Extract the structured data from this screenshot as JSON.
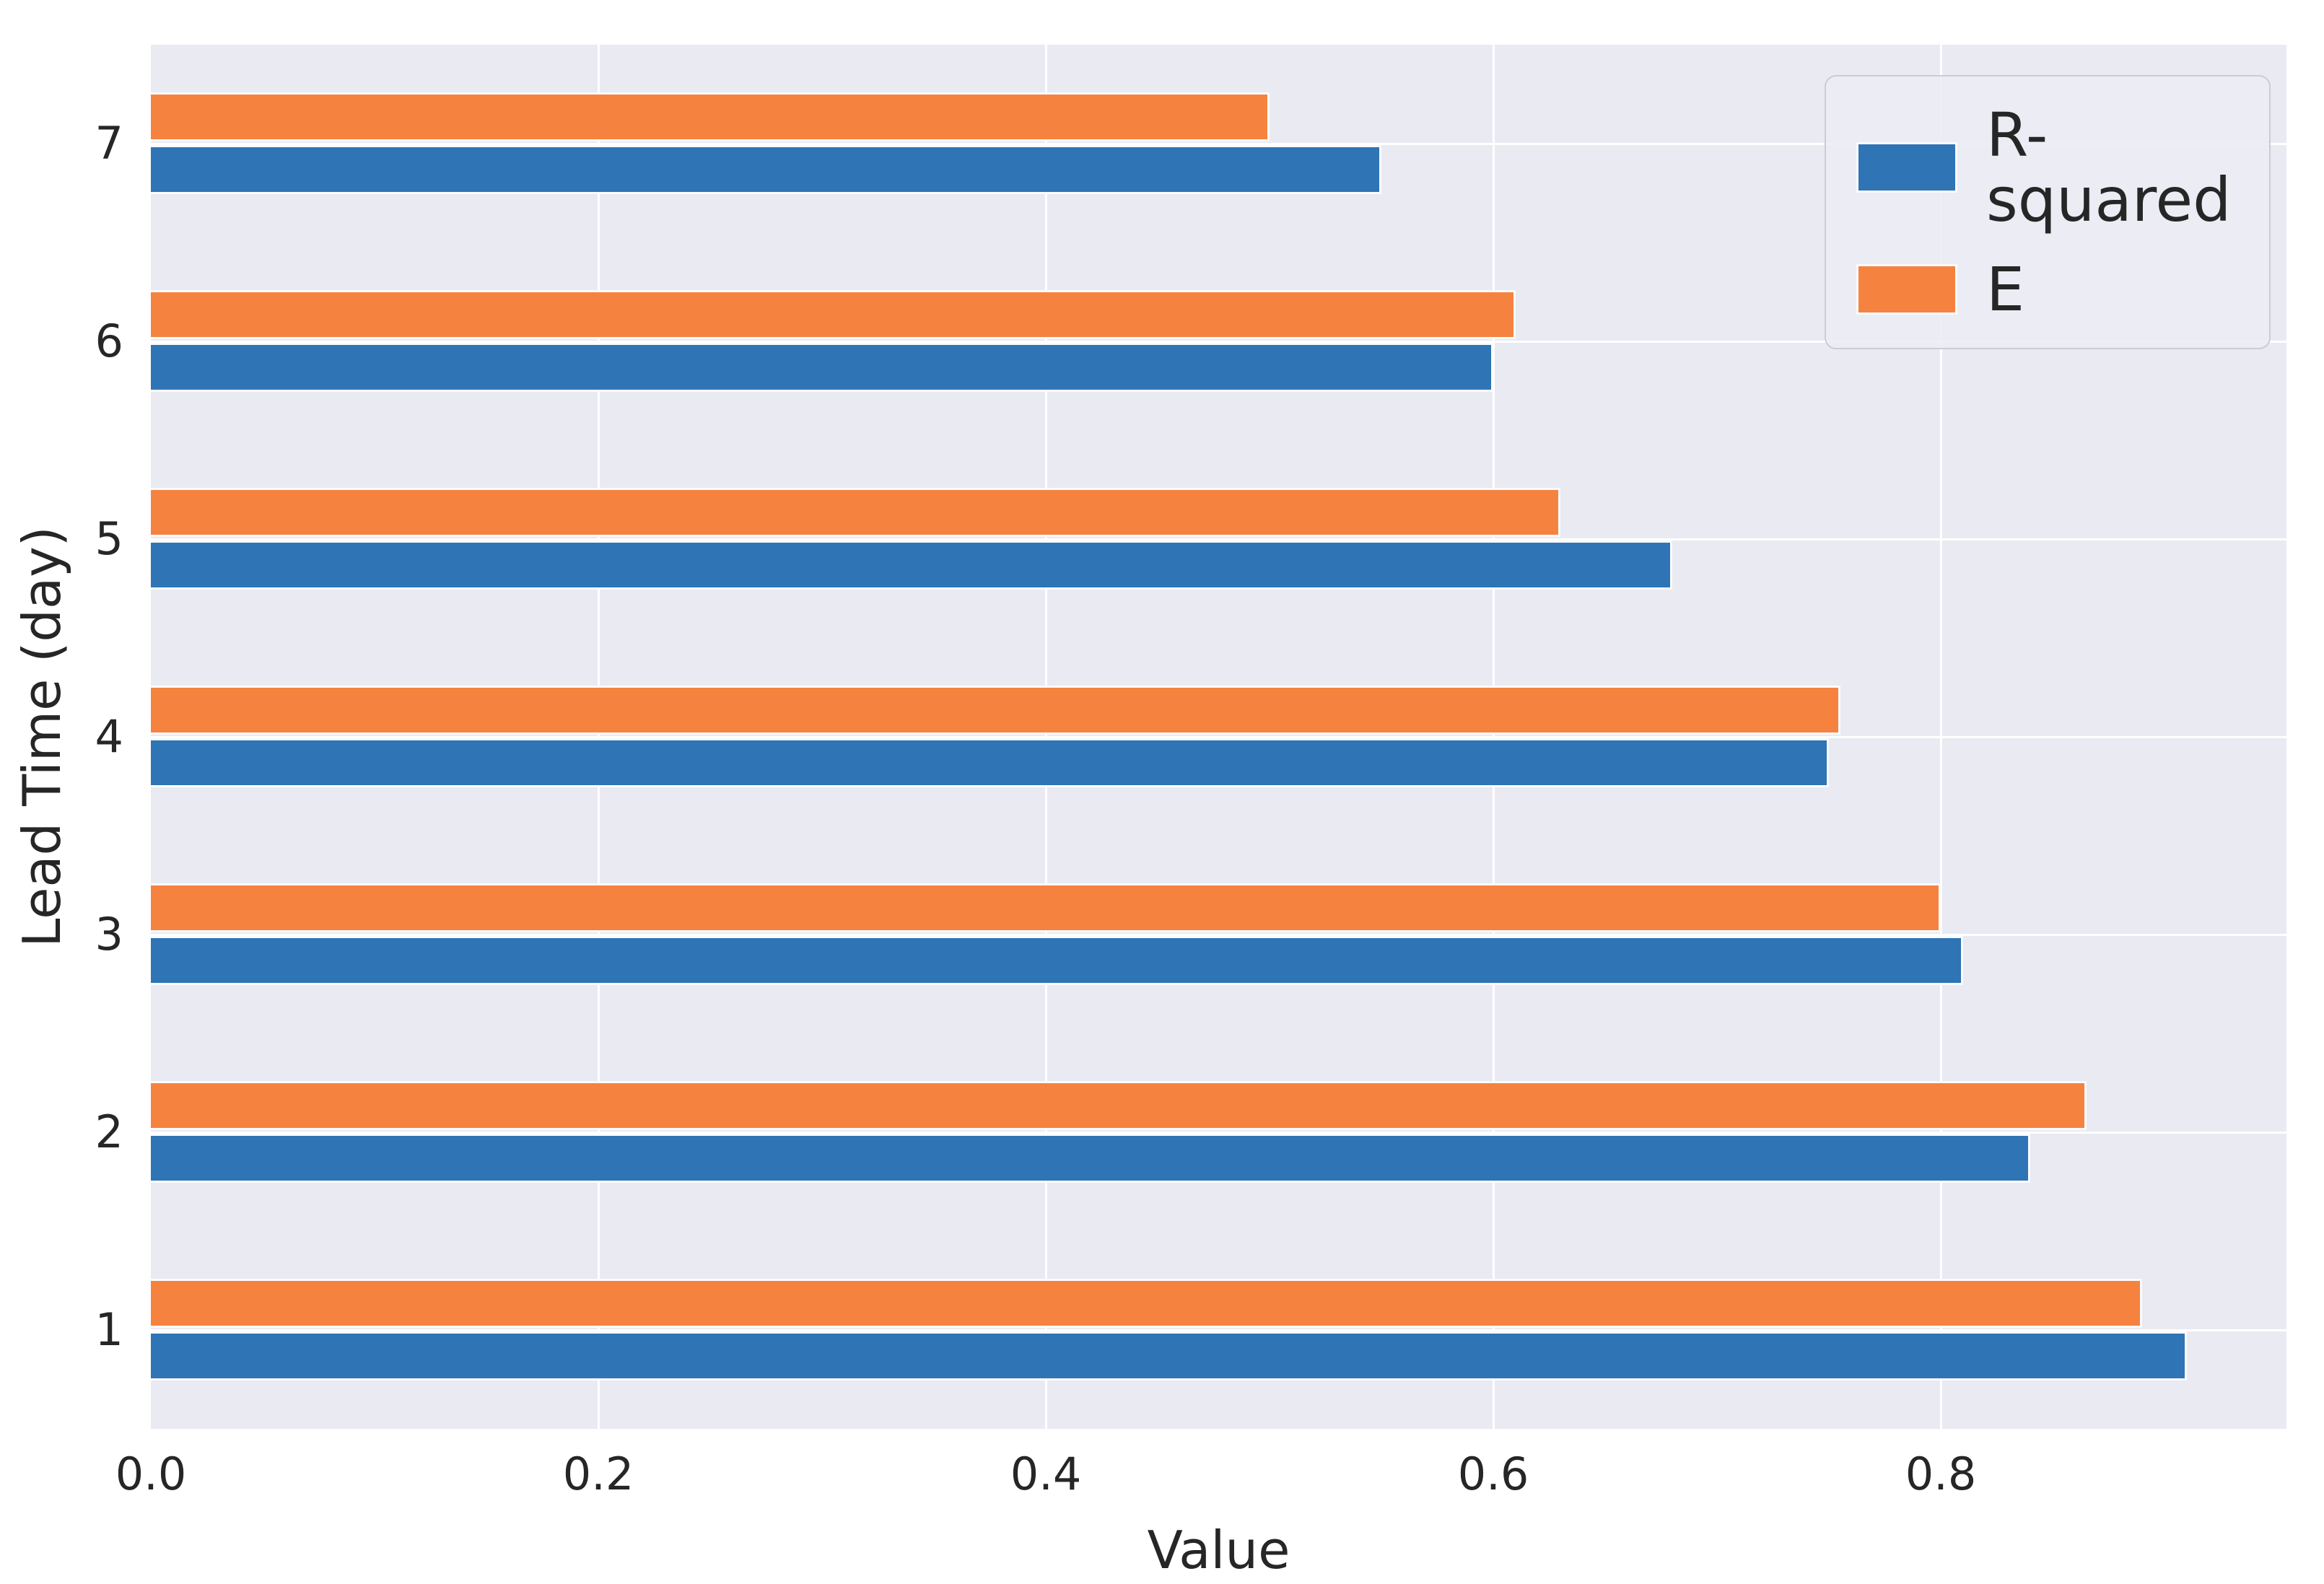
{
  "chart_data": {
    "type": "bar",
    "orientation": "horizontal",
    "title": "",
    "xlabel": "Value",
    "ylabel": "Lead Time (day)",
    "categories_top_to_bottom": [
      "7",
      "6",
      "5",
      "4",
      "3",
      "2",
      "1"
    ],
    "series": [
      {
        "name": "R-squared",
        "color": "#2f74b4",
        "values_top_to_bottom": [
          0.55,
          0.6,
          0.68,
          0.75,
          0.81,
          0.84,
          0.91
        ]
      },
      {
        "name": "E",
        "color": "#f5833f",
        "values_top_to_bottom": [
          0.5,
          0.61,
          0.63,
          0.755,
          0.8,
          0.865,
          0.89
        ]
      }
    ],
    "group_order_top_to_bottom": [
      "E",
      "R-squared"
    ],
    "xticks": [
      "0.0",
      "0.2",
      "0.4",
      "0.6",
      "0.8"
    ],
    "xtick_values": [
      0.0,
      0.2,
      0.4,
      0.6,
      0.8
    ],
    "xlim": [
      0,
      0.9545
    ],
    "grid": true,
    "legend": {
      "position": "upper right",
      "entries": [
        "R-squared",
        "E"
      ]
    },
    "colors": {
      "plot_background": "#e9eaf2",
      "gridline": "#ffffff",
      "text": "#262626"
    }
  }
}
